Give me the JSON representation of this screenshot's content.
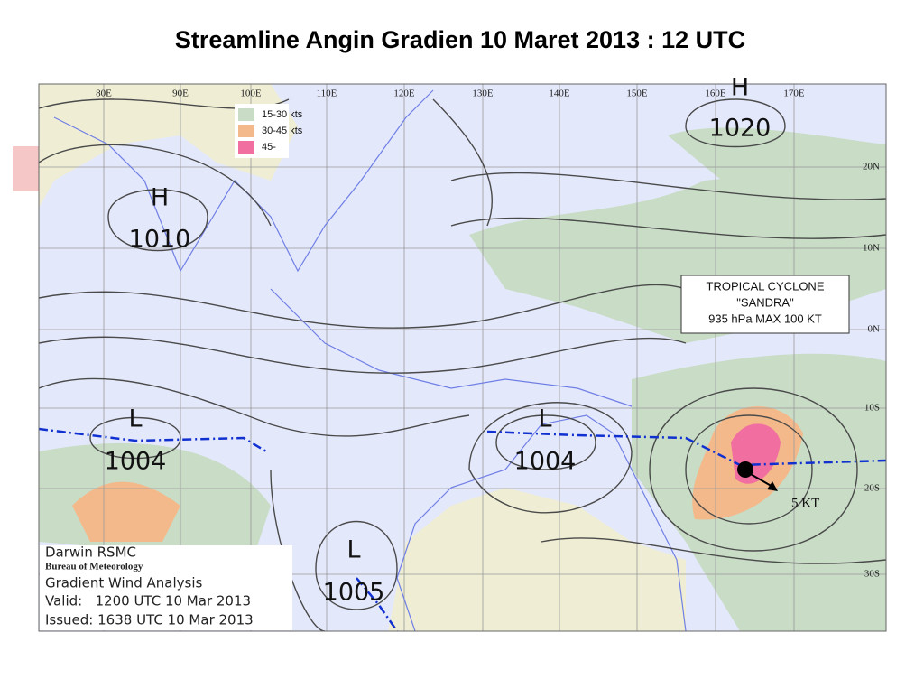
{
  "title": "Streamline Angin Gradien  10 Maret 2013 : 12 UTC",
  "map": {
    "longitude_labels": [
      "80E",
      "90E",
      "100E",
      "110E",
      "120E",
      "130E",
      "140E",
      "150E",
      "160E",
      "170E"
    ],
    "latitude_labels": [
      "20N",
      "10N",
      "0N",
      "10S",
      "20S",
      "30S"
    ],
    "legend": [
      "15-30 kts",
      "30-45 kts",
      "45-"
    ],
    "pressure_systems": [
      {
        "type": "H",
        "value": "1010"
      },
      {
        "type": "H",
        "value": "1020"
      },
      {
        "type": "L",
        "value": "1004"
      },
      {
        "type": "L",
        "value": "1004"
      },
      {
        "type": "L",
        "value": "1005"
      }
    ],
    "cyclone_box": [
      "TROPICAL CYCLONE",
      "\"SANDRA\"",
      "935 hPa MAX 100 KT"
    ],
    "motion_label": "5 KT",
    "info_box": [
      "Darwin RSMC",
      "Bureau of Meteorology",
      "Gradient Wind Analysis",
      "Valid:   1200 UTC 10 Mar 2013",
      "Issued: 1638 UTC 10 Mar 2013"
    ]
  }
}
